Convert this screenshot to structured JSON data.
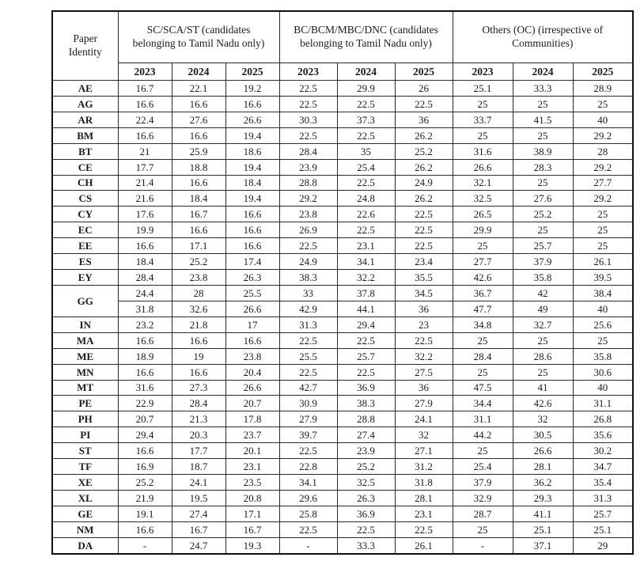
{
  "table": {
    "corner_header": "Paper Identity",
    "groups": [
      {
        "label": "SC/SCA/ST  (candidates belonging to Tamil Nadu only)"
      },
      {
        "label": "BC/BCM/MBC/DNC (candidates belonging to Tamil Nadu only)"
      },
      {
        "label": "Others (OC) (irrespective of Communities)"
      }
    ],
    "year_row": [
      "2023",
      "2024",
      "2025",
      "2023",
      "2024",
      "2025",
      "2023",
      "2024",
      "2025"
    ],
    "rows": [
      {
        "label": "AE",
        "lines": [
          [
            "16.7",
            "22.1",
            "19.2",
            "22.5",
            "29.9",
            "26",
            "25.1",
            "33.3",
            "28.9"
          ]
        ]
      },
      {
        "label": "AG",
        "lines": [
          [
            "16.6",
            "16.6",
            "16.6",
            "22.5",
            "22.5",
            "22.5",
            "25",
            "25",
            "25"
          ]
        ]
      },
      {
        "label": "AR",
        "lines": [
          [
            "22.4",
            "27.6",
            "26.6",
            "30.3",
            "37.3",
            "36",
            "33.7",
            "41.5",
            "40"
          ]
        ]
      },
      {
        "label": "BM",
        "lines": [
          [
            "16.6",
            "16.6",
            "19.4",
            "22.5",
            "22.5",
            "26.2",
            "25",
            "25",
            "29.2"
          ]
        ]
      },
      {
        "label": "BT",
        "lines": [
          [
            "21",
            "25.9",
            "18.6",
            "28.4",
            "35",
            "25.2",
            "31.6",
            "38.9",
            "28"
          ]
        ]
      },
      {
        "label": "CE",
        "lines": [
          [
            "17.7",
            "18.8",
            "19.4",
            "23.9",
            "25.4",
            "26.2",
            "26.6",
            "28.3",
            "29.2"
          ]
        ]
      },
      {
        "label": "CH",
        "lines": [
          [
            "21.4",
            "16.6",
            "18.4",
            "28.8",
            "22.5",
            "24.9",
            "32.1",
            "25",
            "27.7"
          ]
        ]
      },
      {
        "label": "CS",
        "lines": [
          [
            "21.6",
            "18.4",
            "19.4",
            "29.2",
            "24.8",
            "26.2",
            "32.5",
            "27.6",
            "29.2"
          ]
        ]
      },
      {
        "label": "CY",
        "lines": [
          [
            "17.6",
            "16.7",
            "16.6",
            "23.8",
            "22.6",
            "22.5",
            "26.5",
            "25.2",
            "25"
          ]
        ]
      },
      {
        "label": "EC",
        "lines": [
          [
            "19.9",
            "16.6",
            "16.6",
            "26.9",
            "22.5",
            "22.5",
            "29.9",
            "25",
            "25"
          ]
        ]
      },
      {
        "label": "EE",
        "lines": [
          [
            "16.6",
            "17.1",
            "16.6",
            "22.5",
            "23.1",
            "22.5",
            "25",
            "25.7",
            "25"
          ]
        ]
      },
      {
        "label": "ES",
        "lines": [
          [
            "18.4",
            "25.2",
            "17.4",
            "24.9",
            "34.1",
            "23.4",
            "27.7",
            "37.9",
            "26.1"
          ]
        ]
      },
      {
        "label": "EY",
        "lines": [
          [
            "28.4",
            "23.8",
            "26.3",
            "38.3",
            "32.2",
            "35.5",
            "42.6",
            "35.8",
            "39.5"
          ]
        ]
      },
      {
        "label": "GG",
        "lines": [
          [
            "24.4",
            "28",
            "25.5",
            "33",
            "37.8",
            "34.5",
            "36.7",
            "42",
            "38.4"
          ],
          [
            "31.8",
            "32.6",
            "26.6",
            "42.9",
            "44.1",
            "36",
            "47.7",
            "49",
            "40"
          ]
        ]
      },
      {
        "label": "IN",
        "lines": [
          [
            "23.2",
            "21.8",
            "17",
            "31.3",
            "29.4",
            "23",
            "34.8",
            "32.7",
            "25.6"
          ]
        ]
      },
      {
        "label": "MA",
        "lines": [
          [
            "16.6",
            "16.6",
            "16.6",
            "22.5",
            "22.5",
            "22.5",
            "25",
            "25",
            "25"
          ]
        ]
      },
      {
        "label": "ME",
        "lines": [
          [
            "18.9",
            "19",
            "23.8",
            "25.5",
            "25.7",
            "32.2",
            "28.4",
            "28.6",
            "35.8"
          ]
        ]
      },
      {
        "label": "MN",
        "lines": [
          [
            "16.6",
            "16.6",
            "20.4",
            "22.5",
            "22.5",
            "27.5",
            "25",
            "25",
            "30.6"
          ]
        ]
      },
      {
        "label": "MT",
        "lines": [
          [
            "31.6",
            "27.3",
            "26.6",
            "42.7",
            "36.9",
            "36",
            "47.5",
            "41",
            "40"
          ]
        ]
      },
      {
        "label": "PE",
        "lines": [
          [
            "22.9",
            "28.4",
            "20.7",
            "30.9",
            "38.3",
            "27.9",
            "34.4",
            "42.6",
            "31.1"
          ]
        ]
      },
      {
        "label": "PH",
        "lines": [
          [
            "20.7",
            "21.3",
            "17.8",
            "27.9",
            "28.8",
            "24.1",
            "31.1",
            "32",
            "26.8"
          ]
        ]
      },
      {
        "label": "PI",
        "lines": [
          [
            "29.4",
            "20.3",
            "23.7",
            "39.7",
            "27.4",
            "32",
            "44.2",
            "30.5",
            "35.6"
          ]
        ]
      },
      {
        "label": "ST",
        "lines": [
          [
            "16.6",
            "17.7",
            "20.1",
            "22.5",
            "23.9",
            "27.1",
            "25",
            "26.6",
            "30.2"
          ]
        ]
      },
      {
        "label": "TF",
        "lines": [
          [
            "16.9",
            "18.7",
            "23.1",
            "22.8",
            "25.2",
            "31.2",
            "25.4",
            "28.1",
            "34.7"
          ]
        ]
      },
      {
        "label": "XE",
        "lines": [
          [
            "25.2",
            "24.1",
            "23.5",
            "34.1",
            "32.5",
            "31.8",
            "37.9",
            "36.2",
            "35.4"
          ]
        ]
      },
      {
        "label": "XL",
        "lines": [
          [
            "21.9",
            "19.5",
            "20.8",
            "29.6",
            "26.3",
            "28.1",
            "32.9",
            "29.3",
            "31.3"
          ]
        ]
      },
      {
        "label": "GE",
        "lines": [
          [
            "19.1",
            "27.4",
            "17.1",
            "25.8",
            "36.9",
            "23.1",
            "28.7",
            "41.1",
            "25.7"
          ]
        ]
      },
      {
        "label": "NM",
        "lines": [
          [
            "16.6",
            "16.7",
            "16.7",
            "22.5",
            "22.5",
            "22.5",
            "25",
            "25.1",
            "25.1"
          ]
        ]
      },
      {
        "label": "DA",
        "lines": [
          [
            "-",
            "24.7",
            "19.3",
            "-",
            "33.3",
            "26.1",
            "-",
            "37.1",
            "29"
          ]
        ]
      }
    ]
  }
}
